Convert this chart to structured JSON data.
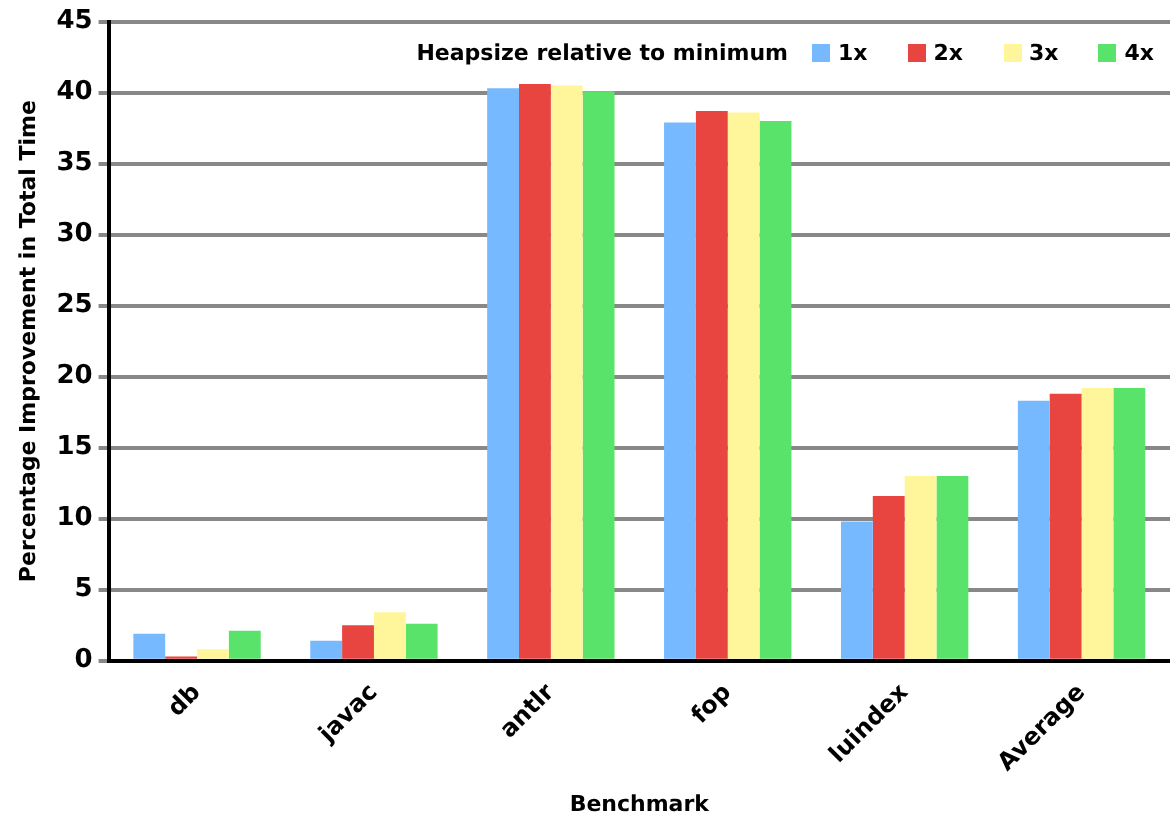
{
  "chart_data": {
    "type": "bar",
    "xlabel": "Benchmark",
    "ylabel": "Percentage Improvement in Total Time",
    "legend_title": "Heapsize relative to minimum",
    "legend": "top right",
    "grid": "y",
    "categories": [
      "db",
      "javac",
      "antlr",
      "fop",
      "luindex",
      "Average"
    ],
    "series": [
      {
        "name": "1x",
        "color": "#77b9ff",
        "values": [
          1.9,
          1.4,
          40.3,
          37.9,
          9.8,
          18.3
        ]
      },
      {
        "name": "2x",
        "color": "#e84541",
        "values": [
          0.3,
          2.5,
          40.6,
          38.7,
          11.6,
          18.8
        ]
      },
      {
        "name": "3x",
        "color": "#fff59b",
        "values": [
          0.8,
          3.4,
          40.5,
          38.6,
          13.0,
          19.2
        ]
      },
      {
        "name": "4x",
        "color": "#5ae36b",
        "values": [
          2.1,
          2.6,
          40.1,
          38.0,
          13.0,
          19.2
        ]
      }
    ],
    "ylim": [
      0,
      45
    ],
    "yticks": [
      0,
      5,
      10,
      15,
      20,
      25,
      30,
      35,
      40,
      45
    ]
  }
}
